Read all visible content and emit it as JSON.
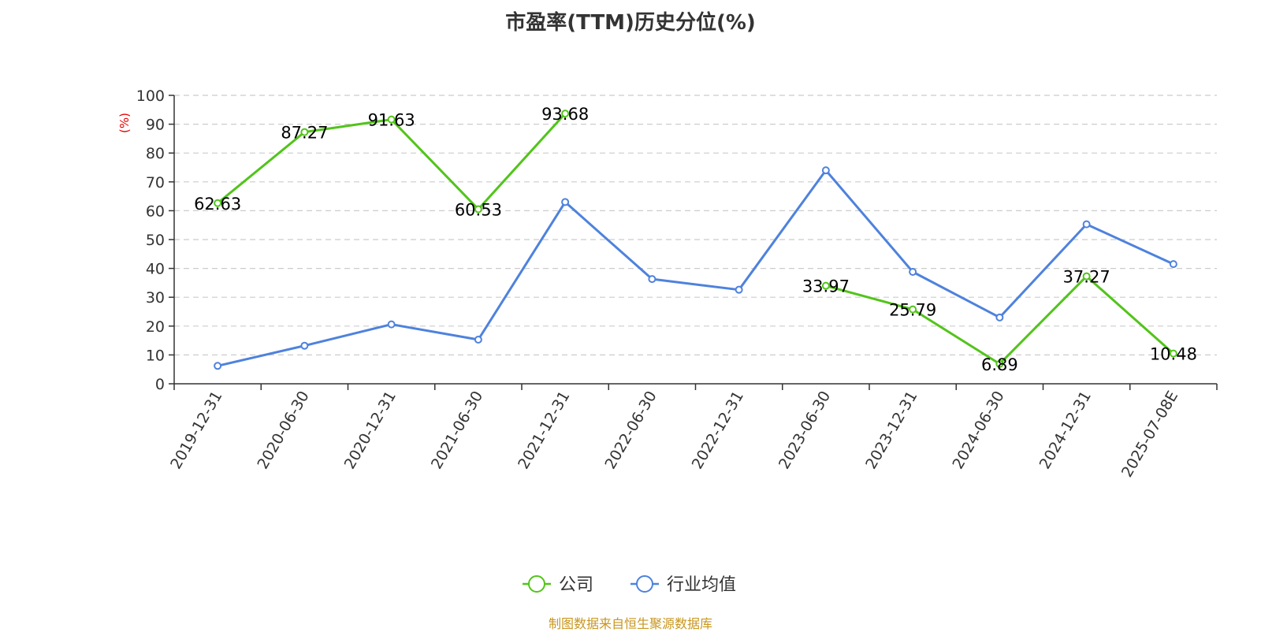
{
  "chart_data": {
    "type": "line",
    "title": "市盈率(TTM)历史分位(%)",
    "ylabel": "(%)",
    "ylim": [
      0,
      100
    ],
    "yticks": [
      0,
      10,
      20,
      30,
      40,
      50,
      60,
      70,
      80,
      90,
      100
    ],
    "grid": true,
    "legend_position": "bottom",
    "categories": [
      "2019-12-31",
      "2020-06-30",
      "2020-12-31",
      "2021-06-30",
      "2021-12-31",
      "2022-06-30",
      "2022-12-31",
      "2023-06-30",
      "2023-12-31",
      "2024-06-30",
      "2024-12-31",
      "2025-07-08E"
    ],
    "series": [
      {
        "name": "公司",
        "color": "#52c41a",
        "values": [
          62.63,
          87.27,
          91.63,
          60.53,
          93.68,
          null,
          null,
          33.97,
          25.79,
          6.89,
          37.27,
          10.48
        ],
        "labels": [
          "62.63",
          "87.27",
          "91.63",
          "60.53",
          "93.68",
          null,
          null,
          "33.97",
          "25.79",
          "6.89",
          "37.27",
          "10.48"
        ]
      },
      {
        "name": "行业均值",
        "color": "#4e82dd",
        "values": [
          6.2,
          13.2,
          20.6,
          15.3,
          63.0,
          36.3,
          32.6,
          74.0,
          38.8,
          23.0,
          55.3,
          41.5
        ]
      }
    ]
  },
  "footer": {
    "source": "制图数据来自恒生聚源数据库",
    "color": "#c8961e"
  },
  "axis_color": "#333333",
  "grid_color": "#cccccc",
  "ylabel_color": "#e60000"
}
